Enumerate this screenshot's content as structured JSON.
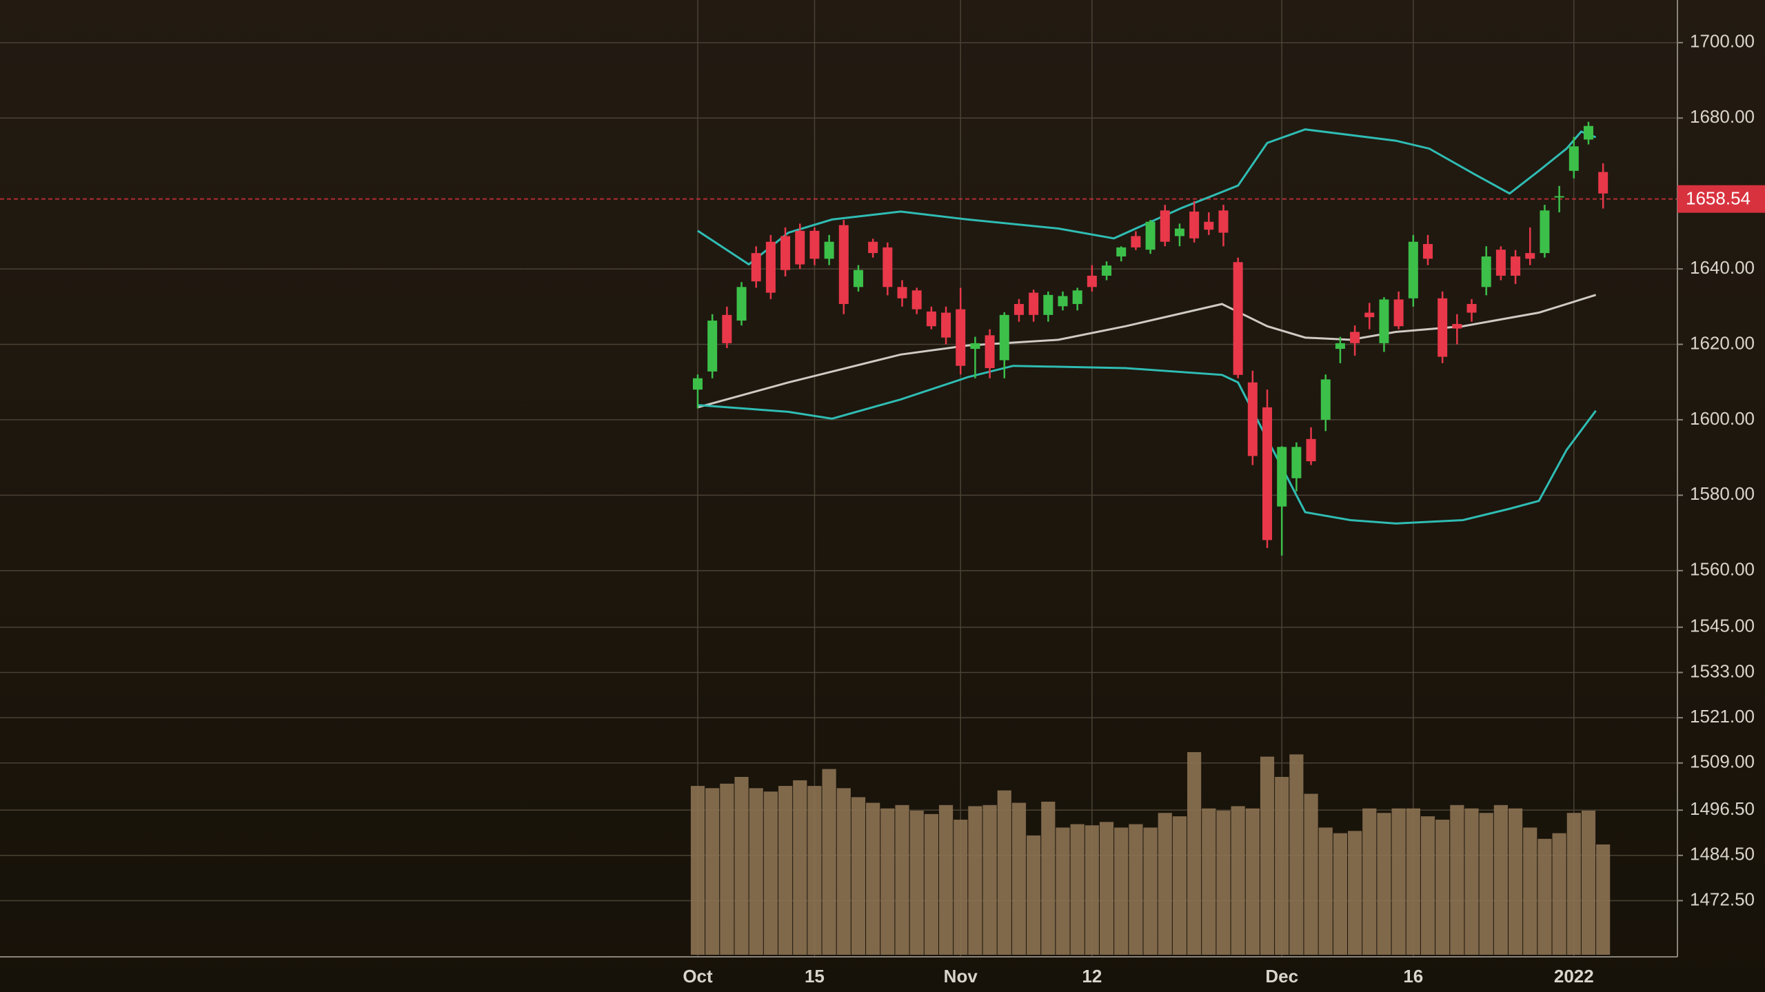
{
  "chart_data": {
    "type": "candlestick",
    "categories": [
      "Oct",
      null,
      null,
      null,
      null,
      null,
      null,
      null,
      "15",
      null,
      null,
      null,
      null,
      null,
      null,
      null,
      null,
      null,
      "Nov",
      null,
      null,
      null,
      null,
      null,
      null,
      null,
      null,
      "12",
      null,
      null,
      null,
      null,
      null,
      null,
      null,
      null,
      null,
      null,
      null,
      null,
      "Dec",
      null,
      null,
      null,
      null,
      null,
      null,
      null,
      null,
      "16",
      null,
      null,
      null,
      null,
      null,
      null,
      null,
      null,
      null,
      null,
      "2022",
      null,
      null
    ],
    "open": [
      1608,
      1612.8,
      1627.8,
      1626.3,
      1644.2,
      1647.2,
      1648.7,
      1650.1,
      1650.1,
      1642.7,
      1651.6,
      1635.2,
      1647.2,
      1645.7,
      1635.2,
      1634.3,
      1628.7,
      1628.4,
      1629.3,
      1618.8,
      1622.4,
      1615.8,
      1630.7,
      1633.7,
      1627.8,
      1630.1,
      1630.7,
      1638.2,
      1638.2,
      1643.3,
      1648.7,
      1645.1,
      1655.5,
      1648.7,
      1655.2,
      1652.5,
      1655.5,
      1641.8,
      1609.9,
      1603.3,
      1577,
      1584.5,
      1594.9,
      1600,
      1618.8,
      1623.3,
      1628.4,
      1620.3,
      1631.9,
      1632.2,
      1646.6,
      1632.2,
      1625.4,
      1630.7,
      1635.2,
      1645.1,
      1643.3,
      1644.2,
      1644.2,
      1659,
      1666,
      1674.3,
      1665.7
    ],
    "high": [
      1612,
      1628,
      1630,
      1636.5,
      1646,
      1649,
      1651,
      1652,
      1651,
      1649,
      1653,
      1641,
      1648,
      1647,
      1637,
      1635,
      1630,
      1630,
      1635,
      1622,
      1624,
      1628.5,
      1632,
      1634.5,
      1634,
      1634,
      1635,
      1641,
      1642,
      1646,
      1650,
      1653,
      1657,
      1652,
      1658,
      1655,
      1657,
      1643,
      1613,
      1608,
      1593,
      1594,
      1598,
      1612,
      1622,
      1625,
      1631,
      1632.5,
      1634,
      1649,
      1649,
      1634,
      1628,
      1632,
      1646,
      1646,
      1645,
      1651,
      1657,
      1662,
      1675,
      1679,
      1668
    ],
    "low": [
      1603,
      1611,
      1619,
      1625,
      1635,
      1632,
      1638,
      1640,
      1641,
      1641,
      1628,
      1634,
      1643,
      1633,
      1630,
      1628,
      1624,
      1620,
      1612,
      1611,
      1611,
      1611,
      1626,
      1626,
      1626,
      1629,
      1629,
      1634,
      1637,
      1642,
      1645,
      1644,
      1646,
      1646,
      1647,
      1649,
      1646,
      1611,
      1588,
      1566,
      1564,
      1581,
      1588,
      1597,
      1615,
      1617,
      1624,
      1618,
      1624,
      1630,
      1641,
      1615,
      1620,
      1626,
      1633,
      1637,
      1636,
      1641,
      1643,
      1655,
      1664,
      1673,
      1656
    ],
    "close": [
      1611,
      1626.3,
      1620.3,
      1635.2,
      1636.7,
      1633.7,
      1639.7,
      1641.2,
      1642.7,
      1647.2,
      1630.7,
      1639.7,
      1644.2,
      1635.2,
      1632.2,
      1629.3,
      1624.8,
      1621.8,
      1614.3,
      1620.3,
      1613.7,
      1627.8,
      1627.8,
      1627.8,
      1633.1,
      1632.8,
      1634.3,
      1635.2,
      1640.9,
      1645.7,
      1645.7,
      1652.5,
      1647.2,
      1650.7,
      1648.1,
      1650.4,
      1649.6,
      1611.9,
      1590.4,
      1568.1,
      1592.8,
      1592.8,
      1589,
      1610.7,
      1620.3,
      1620.3,
      1627.2,
      1631.9,
      1624.8,
      1647.2,
      1642.7,
      1616.7,
      1624.2,
      1628.4,
      1643.3,
      1638.2,
      1638.2,
      1642.7,
      1655.5,
      1659.3,
      1672.5,
      1677.9,
      1660
    ],
    "up_color": "#3cc04a",
    "down_color": "#e8384a",
    "volume": [
      150,
      148,
      152,
      158,
      148,
      145,
      150,
      155,
      150,
      165,
      148,
      140,
      135,
      130,
      133,
      128,
      125,
      133,
      120,
      132,
      133,
      146,
      135,
      106,
      136,
      113,
      116,
      115,
      118,
      113,
      116,
      113,
      126,
      123,
      180,
      130,
      128,
      132,
      130,
      176,
      158,
      178,
      143,
      113,
      108,
      110,
      130,
      126,
      130,
      130,
      123,
      120,
      133,
      130,
      126,
      133,
      130,
      113,
      103,
      108,
      126,
      128,
      98
    ],
    "volume_color": "#8c7252",
    "bands": [
      {
        "color": "#2fbdb4",
        "x": [
          0,
          3.5,
          6.2,
          9.2,
          13.9,
          18.5,
          24.7,
          28.5,
          33.1,
          37,
          39,
          41.6,
          47.8,
          50.1,
          53.2,
          55.6,
          57.6,
          59.5,
          60.5,
          61.5
        ],
        "values": [
          1650.1,
          1641.2,
          1649.6,
          1653.1,
          1655.2,
          1653.1,
          1650.7,
          1648.1,
          1656.1,
          1662.1,
          1673.4,
          1677,
          1674,
          1671.9,
          1665.1,
          1660,
          1666,
          1671.9,
          1676.4,
          1674.9
        ]
      },
      {
        "color": "#cfcac4",
        "x": [
          0,
          6.2,
          13.9,
          18.5,
          24.7,
          29.3,
          35.9,
          39,
          41.6,
          44.7,
          47.8,
          52.4,
          57.6,
          61.5
        ],
        "values": [
          1603.3,
          1609.9,
          1617.3,
          1619.7,
          1621.2,
          1624.8,
          1630.7,
          1624.8,
          1621.8,
          1621.2,
          1623.3,
          1624.8,
          1628.4,
          1633.1
        ]
      },
      {
        "color": "#2fbdb4",
        "x": [
          0,
          6.2,
          9.2,
          13.9,
          18.5,
          21.6,
          29.3,
          35.9,
          37,
          39,
          41.6,
          44.7,
          47.8,
          52.4,
          55.6,
          57.6,
          59.5,
          61.5
        ],
        "values": [
          1603.9,
          1602.1,
          1600.3,
          1605.4,
          1611.3,
          1614.3,
          1613.7,
          1611.9,
          1609.9,
          1594.9,
          1575.5,
          1573.4,
          1572.5,
          1573.4,
          1576.4,
          1578.5,
          1592,
          1602.4
        ]
      }
    ],
    "last_price": 1658.54,
    "last_price_color": "#d8323f",
    "ylim": [
      1457.6,
      1711.3
    ],
    "yticks": [
      {
        "value": 1700,
        "label": "1700.00"
      },
      {
        "value": 1680,
        "label": "1680.00"
      },
      {
        "value": 1640,
        "label": "1640.00"
      },
      {
        "value": 1620,
        "label": "1620.00"
      },
      {
        "value": 1600,
        "label": "1600.00"
      },
      {
        "value": 1580,
        "label": "1580.00"
      },
      {
        "value": 1560,
        "label": "1560.00"
      },
      {
        "value": 1545,
        "label": "1545.00"
      },
      {
        "value": 1533,
        "label": "1533.00"
      },
      {
        "value": 1521,
        "label": "1521.00"
      },
      {
        "value": 1509,
        "label": "1509.00"
      },
      {
        "value": 1496.5,
        "label": "1496.50"
      },
      {
        "value": 1484.5,
        "label": "1484.50"
      },
      {
        "value": 1472.5,
        "label": "1472.50"
      }
    ],
    "grid": true
  }
}
